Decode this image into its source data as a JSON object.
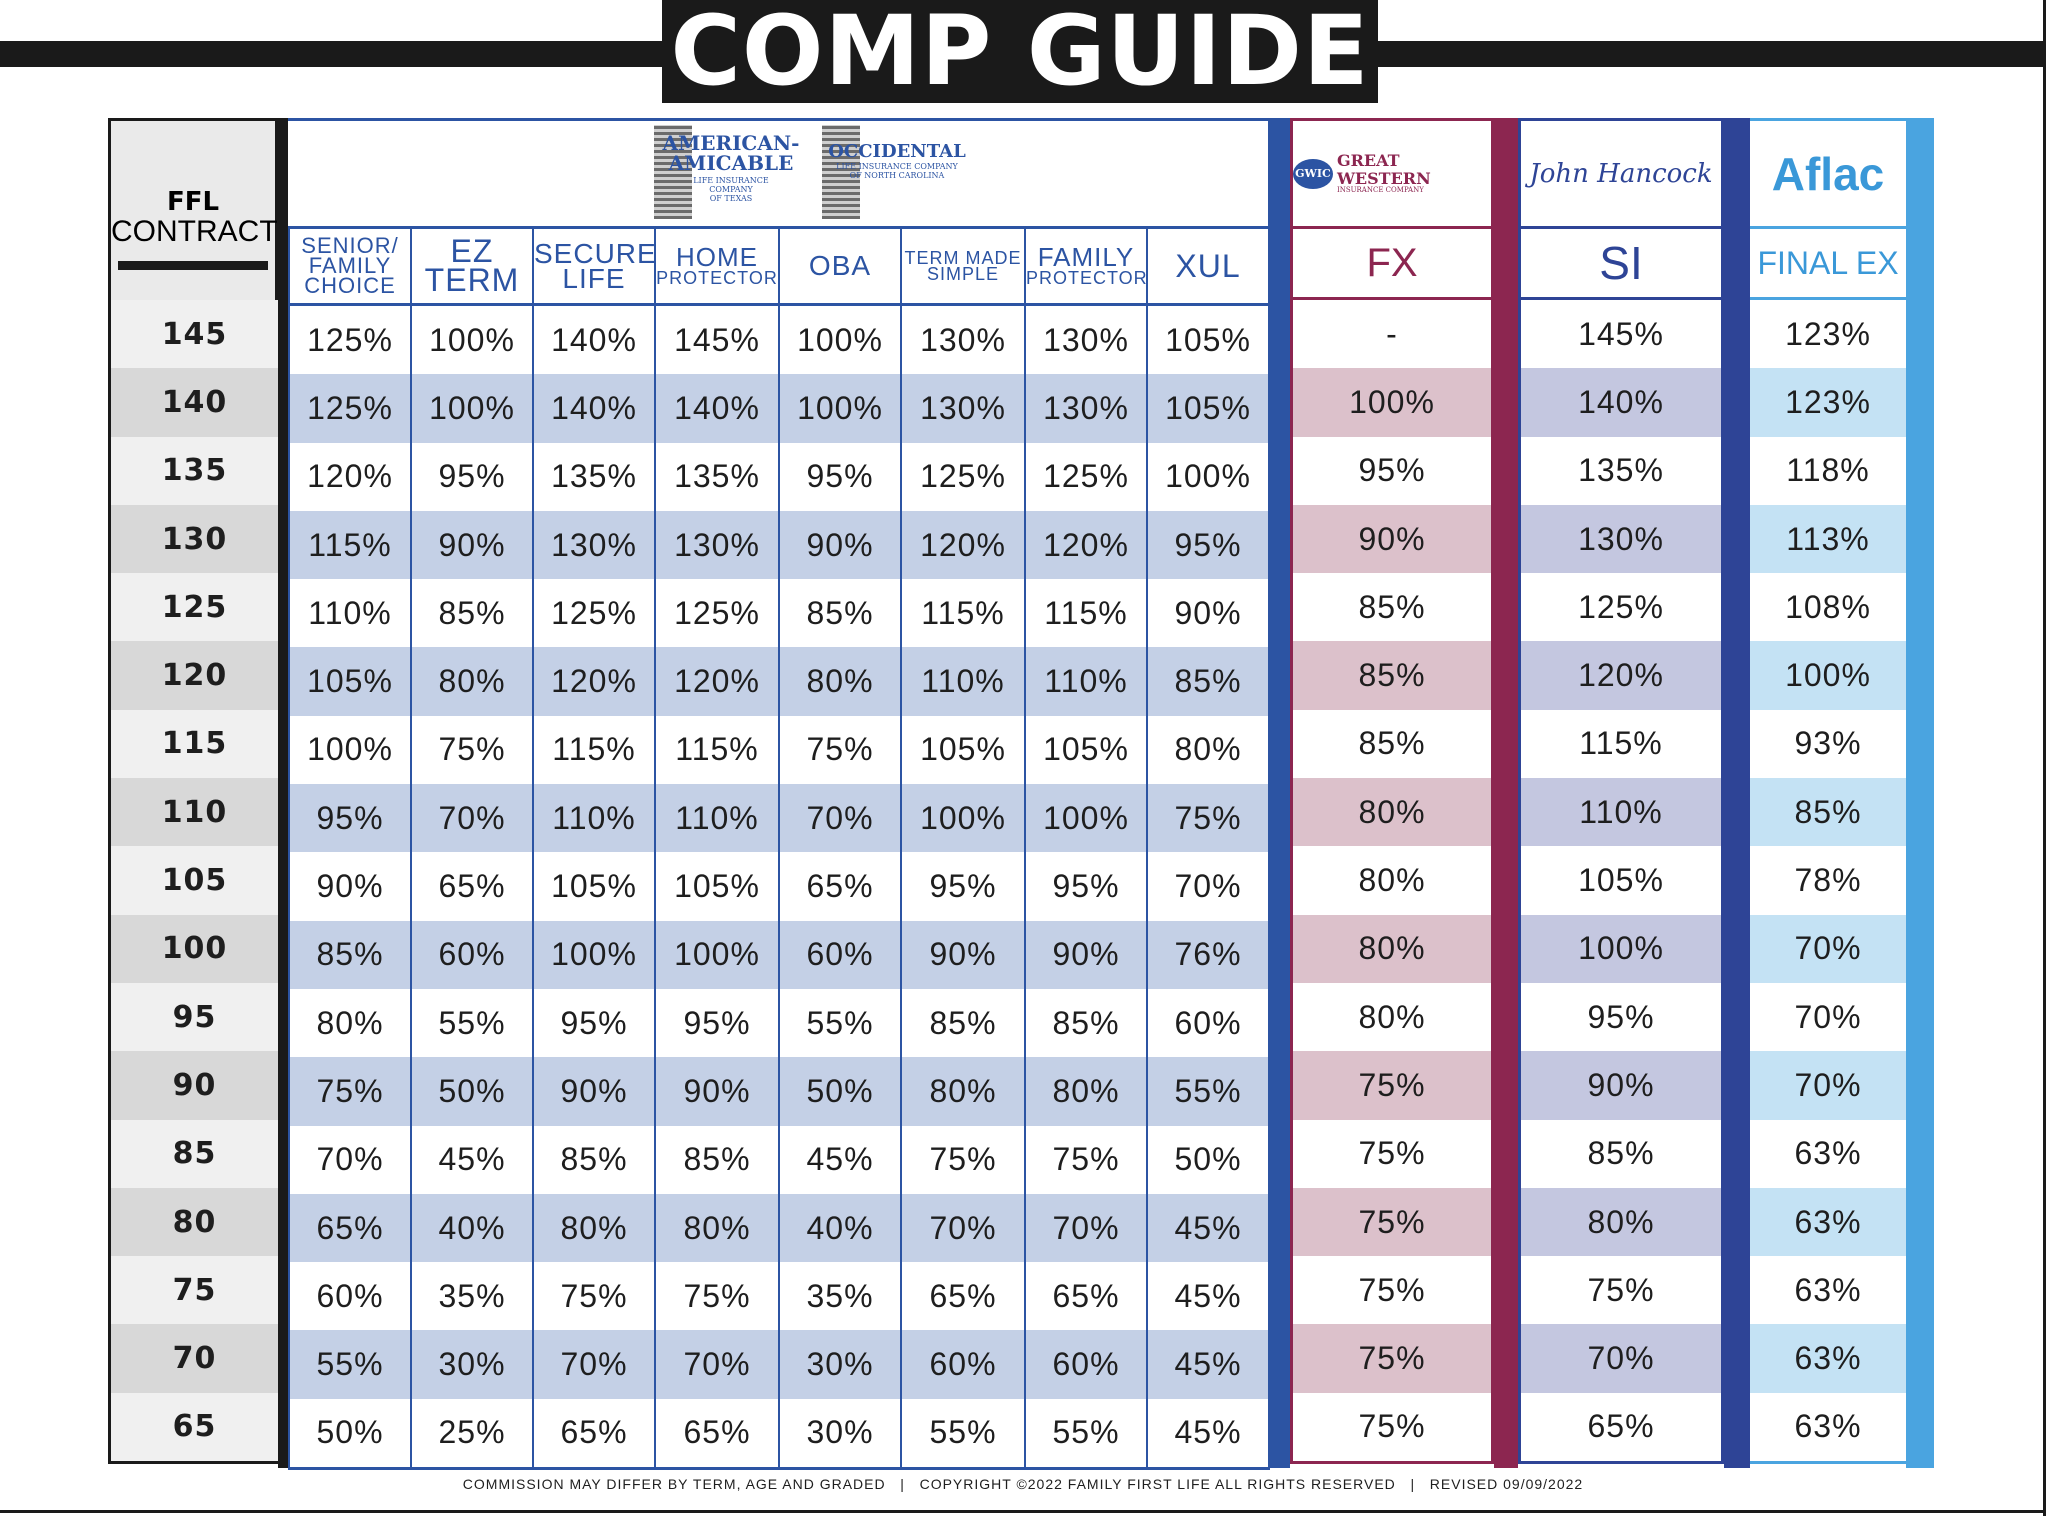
{
  "title": "COMP GUIDE",
  "ffl": {
    "line1": "FFL",
    "line2": "CONTRACT"
  },
  "rows": [
    "145",
    "140",
    "135",
    "130",
    "125",
    "120",
    "115",
    "110",
    "105",
    "100",
    "95",
    "90",
    "85",
    "80",
    "75",
    "70",
    "65"
  ],
  "american_amicable": {
    "logo_text": [
      "AMERICAN-",
      "AMICABLE"
    ],
    "logo_sub": [
      "LIFE INSURANCE",
      "COMPANY",
      "OF TEXAS"
    ],
    "occidental_text": "OCCIDENTAL",
    "occidental_sub": [
      "LIFE INSURANCE COMPANY",
      "OF NORTH CAROLINA"
    ],
    "columns": [
      {
        "label": [
          "SENIOR/",
          "FAMILY",
          "CHOICE"
        ],
        "values": [
          "125%",
          "125%",
          "120%",
          "115%",
          "110%",
          "105%",
          "100%",
          "95%",
          "90%",
          "85%",
          "80%",
          "75%",
          "70%",
          "65%",
          "60%",
          "55%",
          "50%"
        ]
      },
      {
        "label": [
          "EZ",
          "TERM"
        ],
        "values": [
          "100%",
          "100%",
          "95%",
          "90%",
          "85%",
          "80%",
          "75%",
          "70%",
          "65%",
          "60%",
          "55%",
          "50%",
          "45%",
          "40%",
          "35%",
          "30%",
          "25%"
        ]
      },
      {
        "label": [
          "SECURE",
          "LIFE"
        ],
        "values": [
          "140%",
          "140%",
          "135%",
          "130%",
          "125%",
          "120%",
          "115%",
          "110%",
          "105%",
          "100%",
          "95%",
          "90%",
          "85%",
          "80%",
          "75%",
          "70%",
          "65%"
        ]
      },
      {
        "label": [
          "HOME",
          "PROTECTOR"
        ],
        "values": [
          "145%",
          "140%",
          "135%",
          "130%",
          "125%",
          "120%",
          "115%",
          "110%",
          "105%",
          "100%",
          "95%",
          "90%",
          "85%",
          "80%",
          "75%",
          "70%",
          "65%"
        ]
      },
      {
        "label": [
          "OBA"
        ],
        "values": [
          "100%",
          "100%",
          "95%",
          "90%",
          "85%",
          "80%",
          "75%",
          "70%",
          "65%",
          "60%",
          "55%",
          "50%",
          "45%",
          "40%",
          "35%",
          "30%",
          "30%"
        ]
      },
      {
        "label": [
          "TERM MADE",
          "SIMPLE"
        ],
        "values": [
          "130%",
          "130%",
          "125%",
          "120%",
          "115%",
          "110%",
          "105%",
          "100%",
          "95%",
          "90%",
          "85%",
          "80%",
          "75%",
          "70%",
          "65%",
          "60%",
          "55%"
        ]
      },
      {
        "label": [
          "FAMILY",
          "PROTECTOR"
        ],
        "values": [
          "130%",
          "130%",
          "125%",
          "120%",
          "115%",
          "110%",
          "105%",
          "100%",
          "95%",
          "90%",
          "85%",
          "80%",
          "75%",
          "70%",
          "65%",
          "60%",
          "55%"
        ]
      },
      {
        "label": [
          "XUL"
        ],
        "values": [
          "105%",
          "105%",
          "100%",
          "95%",
          "90%",
          "85%",
          "80%",
          "75%",
          "70%",
          "76%",
          "60%",
          "55%",
          "50%",
          "45%",
          "45%",
          "45%",
          "45%"
        ]
      }
    ]
  },
  "great_western": {
    "logo_mark": "GWIC",
    "logo_name": "GREAT WESTERN",
    "logo_sub": "INSURANCE COMPANY",
    "column": "FX",
    "values": [
      "-",
      "100%",
      "95%",
      "90%",
      "85%",
      "85%",
      "85%",
      "80%",
      "80%",
      "80%",
      "80%",
      "75%",
      "75%",
      "75%",
      "75%",
      "75%",
      "75%"
    ]
  },
  "john_hancock": {
    "logo": "John Hancock",
    "column": "SI",
    "values": [
      "145%",
      "140%",
      "135%",
      "130%",
      "125%",
      "120%",
      "115%",
      "110%",
      "105%",
      "100%",
      "95%",
      "90%",
      "85%",
      "80%",
      "75%",
      "70%",
      "65%"
    ]
  },
  "aflac": {
    "logo": "Aflac",
    "column": "FINAL EX",
    "values": [
      "123%",
      "123%",
      "118%",
      "113%",
      "108%",
      "100%",
      "93%",
      "85%",
      "78%",
      "70%",
      "70%",
      "70%",
      "63%",
      "63%",
      "63%",
      "63%",
      "63%"
    ]
  },
  "footer": {
    "disclaimer": "COMMISSION MAY DIFFER BY TERM, AGE AND GRADED",
    "copyright": "COPYRIGHT ©2022 FAMILY FIRST LIFE ALL RIGHTS RESERVED",
    "revised": "REVISED 09/09/2022"
  },
  "colors": {
    "aa_blue": "#2c54a3",
    "aa_shade": "#c4d0e6",
    "gw_maroon": "#8c2650",
    "gw_shade": "#dcc1cb",
    "jh_navy": "#2e4496",
    "jh_shade": "#c4c7e0",
    "aflac_blue": "#4aa4e0",
    "aflac_shade": "#c4e2f4"
  }
}
